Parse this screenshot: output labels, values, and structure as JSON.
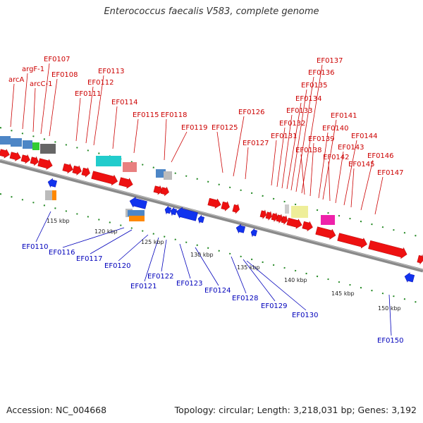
{
  "title": "Enterococcus faecalis V583, complete genome",
  "footer": {
    "accession": "Accession: NC_004668",
    "summary": "Topology: circular; Length: 3,218,031 bp; Genes: 3,192"
  },
  "colors": {
    "forward_label": "#cc0000",
    "reverse_label": "#0000bb",
    "forward_gene": "#ee1111",
    "reverse_gene": "#1133ee",
    "backbone": "#888888",
    "tick": "#228822"
  },
  "scale_labels": [
    "115 kbp",
    "120 kbp",
    "125 kbp",
    "130 kbp",
    "135 kbp",
    "140 kbp",
    "145 kbp",
    "150 kbp"
  ],
  "forward_labels": [
    {
      "text": "arcA",
      "ax": 15,
      "ay": 180
    },
    {
      "text": "argF-1",
      "ax": 32,
      "ay": 183
    },
    {
      "text": "arcC-1",
      "ax": 47,
      "ay": 187
    },
    {
      "text": "EF0107",
      "ax": 58,
      "ay": 190
    },
    {
      "text": "EF0108",
      "ax": 70,
      "ay": 193
    },
    {
      "text": "EF0111",
      "ax": 108,
      "ay": 200
    },
    {
      "text": "EF0112",
      "ax": 122,
      "ay": 203
    },
    {
      "text": "EF0113",
      "ax": 133,
      "ay": 206
    },
    {
      "text": "EF0114",
      "ax": 160,
      "ay": 211
    },
    {
      "text": "EF0115",
      "ax": 190,
      "ay": 217
    },
    {
      "text": "EF0118",
      "ax": 233,
      "ay": 227
    },
    {
      "text": "EF0119",
      "ax": 243,
      "ay": 230
    },
    {
      "text": "EF0125",
      "ax": 316,
      "ay": 245
    },
    {
      "text": "EF0126",
      "ax": 331,
      "ay": 250
    },
    {
      "text": "EF0127",
      "ax": 348,
      "ay": 254
    },
    {
      "text": "EF0131",
      "ax": 385,
      "ay": 263
    },
    {
      "text": "EF0132",
      "ax": 393,
      "ay": 265
    },
    {
      "text": "EF0133",
      "ax": 400,
      "ay": 267
    },
    {
      "text": "EF0134",
      "ax": 407,
      "ay": 268
    },
    {
      "text": "EF0135",
      "ax": 413,
      "ay": 270
    },
    {
      "text": "EF0136",
      "ax": 420,
      "ay": 272
    },
    {
      "text": "EF0137",
      "ax": 428,
      "ay": 274
    },
    {
      "text": "EF0138",
      "ax": 432,
      "ay": 276
    },
    {
      "text": "EF0139",
      "ax": 440,
      "ay": 278
    },
    {
      "text": "EF0140",
      "ax": 452,
      "ay": 281
    },
    {
      "text": "EF0141",
      "ax": 458,
      "ay": 283
    },
    {
      "text": "EF0142",
      "ax": 468,
      "ay": 285
    },
    {
      "text": "EF0143",
      "ax": 476,
      "ay": 288
    },
    {
      "text": "EF0144",
      "ax": 488,
      "ay": 291
    },
    {
      "text": "EF0145",
      "ax": 498,
      "ay": 294
    },
    {
      "text": "EF0146",
      "ax": 512,
      "ay": 298
    },
    {
      "text": "EF0147",
      "ax": 532,
      "ay": 304
    }
  ],
  "reverse_labels": [
    {
      "text": "EF0110",
      "ax": 72,
      "ay": 300
    },
    {
      "text": "EF0116",
      "ax": 176,
      "ay": 323
    },
    {
      "text": "EF0117",
      "ax": 187,
      "ay": 326
    },
    {
      "text": "EF0120",
      "ax": 210,
      "ay": 333
    },
    {
      "text": "EF0121",
      "ax": 225,
      "ay": 337
    },
    {
      "text": "EF0122",
      "ax": 236,
      "ay": 340
    },
    {
      "text": "EF0123",
      "ax": 255,
      "ay": 346
    },
    {
      "text": "EF0124",
      "ax": 277,
      "ay": 351
    },
    {
      "text": "EF0128",
      "ax": 328,
      "ay": 364
    },
    {
      "text": "EF0129",
      "ax": 345,
      "ay": 368
    },
    {
      "text": "EF0130",
      "ax": 350,
      "ay": 370
    },
    {
      "text": "EF0150",
      "ax": 552,
      "ay": 418
    }
  ]
}
